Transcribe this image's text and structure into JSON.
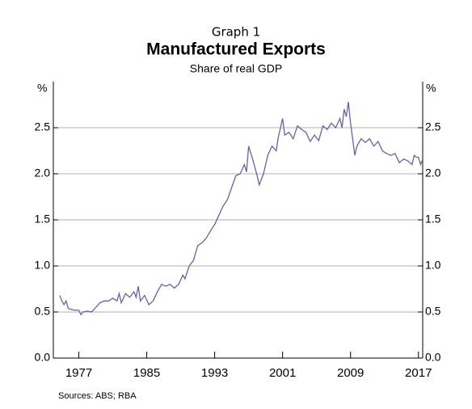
{
  "chart_data": {
    "type": "line",
    "label": "Graph 1",
    "title": "Manufactured Exports",
    "subtitle": "Share of real GDP",
    "y_unit": "%",
    "source": "Sources: ABS; RBA",
    "xlim": [
      1974,
      2017.5
    ],
    "xticks": [
      1977,
      1985,
      1993,
      2001,
      2009,
      2017
    ],
    "ylim": [
      0,
      3
    ],
    "yticks": [
      {
        "value": 0,
        "label": "0.0"
      },
      0.5,
      {
        "value": 1,
        "label": "1.0"
      },
      1.5,
      {
        "value": 2,
        "label": "2.0"
      },
      2.5
    ],
    "grid": true,
    "series": [
      {
        "color": "#6b5fa8",
        "x": [
          1974.75,
          1975,
          1975.25,
          1975.5,
          1975.75,
          1976,
          1976.5,
          1977,
          1977.25,
          1977.5,
          1978,
          1978.5,
          1979,
          1979.5,
          1980,
          1980.5,
          1981,
          1981.5,
          1981.75,
          1982,
          1982.5,
          1983,
          1983.5,
          1983.75,
          1984,
          1984.25,
          1984.75,
          1985.25,
          1985.75,
          1986.25,
          1986.75,
          1987.25,
          1987.75,
          1988.25,
          1988.75,
          1989.25,
          1989.5,
          1990,
          1990.5,
          1991,
          1991.5,
          1992,
          1992.5,
          1993,
          1993.5,
          1994,
          1994.5,
          1995,
          1995.5,
          1996,
          1996.5,
          1996.75,
          1997,
          1997.5,
          1998,
          1998.25,
          1998.75,
          1999.25,
          1999.75,
          2000.25,
          2000.5,
          2001,
          2001.25,
          2001.75,
          2002.25,
          2002.75,
          2003.25,
          2003.75,
          2004.25,
          2004.75,
          2005.25,
          2005.75,
          2006.25,
          2006.75,
          2007.25,
          2007.75,
          2008,
          2008.25,
          2008.5,
          2008.75,
          2009,
          2009.25,
          2009.5,
          2009.75,
          2010.25,
          2010.75,
          2011.25,
          2011.75,
          2012.25,
          2012.75,
          2013.25,
          2013.75,
          2014.25,
          2014.75,
          2015.25,
          2015.75,
          2016.25,
          2016.5,
          2016.75,
          2017,
          2017.25,
          2017.4
        ],
        "values": [
          0.68,
          0.62,
          0.58,
          0.62,
          0.54,
          0.53,
          0.52,
          0.52,
          0.47,
          0.5,
          0.51,
          0.5,
          0.55,
          0.6,
          0.62,
          0.62,
          0.65,
          0.62,
          0.7,
          0.6,
          0.7,
          0.66,
          0.72,
          0.66,
          0.78,
          0.62,
          0.68,
          0.58,
          0.62,
          0.72,
          0.8,
          0.78,
          0.8,
          0.76,
          0.8,
          0.9,
          0.86,
          1.0,
          1.06,
          1.22,
          1.25,
          1.3,
          1.38,
          1.45,
          1.55,
          1.65,
          1.72,
          1.85,
          1.98,
          2.0,
          2.1,
          2.02,
          2.3,
          2.15,
          1.98,
          1.88,
          2.0,
          2.2,
          2.3,
          2.25,
          2.4,
          2.6,
          2.42,
          2.45,
          2.38,
          2.52,
          2.48,
          2.45,
          2.35,
          2.42,
          2.36,
          2.52,
          2.48,
          2.55,
          2.5,
          2.6,
          2.5,
          2.7,
          2.62,
          2.78,
          2.55,
          2.38,
          2.2,
          2.3,
          2.38,
          2.34,
          2.38,
          2.3,
          2.35,
          2.25,
          2.22,
          2.2,
          2.22,
          2.12,
          2.16,
          2.14,
          2.1,
          2.2,
          2.18,
          2.18,
          2.1,
          2.14
        ]
      }
    ]
  }
}
